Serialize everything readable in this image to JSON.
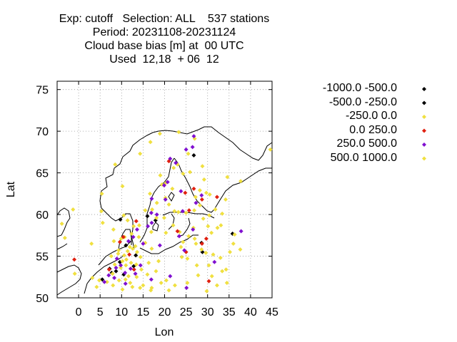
{
  "title_lines": [
    "Exp: cutoff   Selection: ALL    537 stations",
    "Period: 20231108-20231124",
    "Cloud base bias [m] at  00 UTC",
    "Used  12,18  + 06  12"
  ],
  "chart_data": {
    "type": "scatter",
    "xlabel": "Lon",
    "ylabel": "Lat",
    "xlim": [
      -5,
      45
    ],
    "ylim": [
      50,
      76
    ],
    "xticks": [
      0,
      5,
      10,
      15,
      20,
      25,
      30,
      35,
      40,
      45
    ],
    "yticks": [
      50,
      55,
      60,
      65,
      70,
      75
    ],
    "grid": true,
    "legend_placement": "right",
    "series": [
      {
        "name": "-1000.0 -500.0",
        "color": "#000000",
        "points": []
      },
      {
        "name": "-500.0 -250.0",
        "color": "#000000",
        "points": [
          [
            8.7,
            53.2
          ],
          [
            7.2,
            53.5
          ],
          [
            9.6,
            54.3
          ],
          [
            11.0,
            56.3
          ],
          [
            9.7,
            59.4
          ],
          [
            26.8,
            67.1
          ],
          [
            28.8,
            55.5
          ],
          [
            28.6,
            56.6
          ],
          [
            35.8,
            57.7
          ],
          [
            5.5,
            52.2
          ],
          [
            10.5,
            52.8
          ],
          [
            12.8,
            53.8
          ],
          [
            13.3,
            55.1
          ],
          [
            16.0,
            59.8
          ],
          [
            7.7,
            53.0
          ],
          [
            17.9,
            59.3
          ]
        ]
      },
      {
        "name": "-250.0 0.0",
        "color": "#f0e040",
        "points": [
          [
            -3.9,
            58.9
          ],
          [
            -1.3,
            60.6
          ],
          [
            -3.2,
            57.2
          ],
          [
            -0.9,
            52.9
          ],
          [
            4.8,
            52.1
          ],
          [
            4.2,
            51.3
          ],
          [
            3.2,
            52.4
          ],
          [
            3.0,
            56.5
          ],
          [
            7.6,
            55.0
          ],
          [
            8.2,
            56.8
          ],
          [
            9.3,
            55.7
          ],
          [
            9.9,
            57.1
          ],
          [
            10.6,
            55.1
          ],
          [
            11.4,
            55.6
          ],
          [
            12.6,
            55.9
          ],
          [
            10.2,
            54.4
          ],
          [
            11.0,
            53.9
          ],
          [
            12.2,
            54.2
          ],
          [
            13.4,
            54.0
          ],
          [
            14.6,
            53.4
          ],
          [
            8.0,
            51.5
          ],
          [
            9.4,
            52.1
          ],
          [
            10.2,
            51.0
          ],
          [
            11.6,
            52.6
          ],
          [
            12.0,
            51.8
          ],
          [
            13.5,
            52.5
          ],
          [
            15.0,
            51.5
          ],
          [
            16.0,
            52.8
          ],
          [
            17.0,
            51.2
          ],
          [
            18.6,
            54.4
          ],
          [
            19.2,
            51.8
          ],
          [
            20.4,
            52.1
          ],
          [
            21.0,
            50.9
          ],
          [
            22.4,
            51.5
          ],
          [
            24.0,
            54.9
          ],
          [
            24.3,
            56.7
          ],
          [
            25.3,
            54.7
          ],
          [
            25.6,
            57.4
          ],
          [
            26.7,
            58.4
          ],
          [
            27.5,
            53.9
          ],
          [
            30.3,
            53.9
          ],
          [
            31.0,
            52.6
          ],
          [
            32.2,
            51.5
          ],
          [
            33.4,
            53.2
          ],
          [
            34.5,
            51.8
          ],
          [
            34.3,
            53.4
          ],
          [
            35.2,
            55.5
          ],
          [
            36.3,
            57.6
          ],
          [
            36.0,
            56.5
          ],
          [
            37.6,
            55.8
          ],
          [
            33.1,
            58.7
          ],
          [
            30.4,
            59.9
          ],
          [
            29.0,
            59.5
          ],
          [
            26.9,
            60.5
          ],
          [
            25.0,
            60.2
          ],
          [
            23.2,
            60.3
          ],
          [
            22.3,
            60.4
          ],
          [
            21.0,
            61.2
          ],
          [
            21.8,
            63.1
          ],
          [
            20.2,
            62.0
          ],
          [
            19.9,
            59.6
          ],
          [
            18.1,
            59.6
          ],
          [
            17.1,
            60.6
          ],
          [
            15.5,
            60.5
          ],
          [
            14.1,
            58.7
          ],
          [
            12.3,
            57.7
          ],
          [
            11.9,
            56.1
          ],
          [
            13.2,
            56.2
          ],
          [
            12.8,
            58.6
          ],
          [
            11.4,
            59.3
          ],
          [
            10.5,
            59.9
          ],
          [
            8.1,
            58.2
          ],
          [
            5.6,
            59.0
          ],
          [
            5.3,
            60.4
          ],
          [
            5.4,
            62.5
          ],
          [
            10.2,
            63.4
          ],
          [
            8.5,
            66.0
          ],
          [
            14.3,
            67.3
          ],
          [
            16.7,
            68.7
          ],
          [
            18.9,
            69.7
          ],
          [
            23.3,
            69.9
          ],
          [
            27.0,
            69.1
          ],
          [
            25.5,
            67.3
          ],
          [
            25.9,
            65.1
          ],
          [
            22.1,
            65.6
          ],
          [
            20.3,
            63.8
          ],
          [
            19.0,
            64.7
          ],
          [
            24.3,
            64.9
          ],
          [
            28.8,
            65.8
          ],
          [
            29.2,
            64.2
          ],
          [
            29.7,
            62.6
          ],
          [
            28.2,
            61.1
          ],
          [
            31.8,
            60.6
          ],
          [
            34.2,
            61.8
          ],
          [
            34.6,
            64.5
          ],
          [
            37.7,
            64.0
          ],
          [
            44.6,
            67.8
          ],
          [
            23.0,
            66.0
          ],
          [
            22.0,
            58.7
          ],
          [
            23.5,
            57.9
          ],
          [
            27.0,
            57.1
          ],
          [
            29.6,
            55.4
          ],
          [
            31.3,
            55.2
          ],
          [
            33.0,
            54.8
          ],
          [
            25.3,
            51.8
          ],
          [
            27.8,
            52.7
          ],
          [
            29.8,
            50.8
          ],
          [
            18.0,
            53.2
          ],
          [
            20.3,
            57.8
          ],
          [
            23.8,
            56.1
          ],
          [
            15.5,
            56.6
          ],
          [
            14.0,
            57.3
          ],
          [
            16.9,
            57.9
          ],
          [
            18.2,
            61.4
          ],
          [
            19.4,
            63.6
          ],
          [
            16.6,
            62.5
          ],
          [
            30.5,
            62.4
          ],
          [
            33.4,
            60.1
          ],
          [
            30.1,
            58.6
          ],
          [
            28.6,
            55.8
          ],
          [
            27.3,
            56.5
          ],
          [
            7.9,
            52.9
          ],
          [
            6.6,
            51.9
          ],
          [
            10.9,
            52.2
          ],
          [
            12.5,
            51.3
          ],
          [
            14.3,
            51.2
          ],
          [
            16.3,
            54.2
          ],
          [
            16.8,
            50.9
          ],
          [
            9.8,
            53.6
          ],
          [
            11.1,
            54.6
          ],
          [
            14.4,
            54.9
          ],
          [
            13.6,
            55.5
          ],
          [
            17.0,
            55.9
          ],
          [
            32.3,
            58.4
          ],
          [
            30.9,
            57.8
          ],
          [
            28.2,
            62.9
          ],
          [
            27.2,
            62.1
          ],
          [
            9.2,
            55.3
          ],
          [
            8.4,
            54.0
          ],
          [
            10.7,
            57.3
          ]
        ]
      },
      {
        "name": "0.0 250.0",
        "color": "#e02010",
        "points": [
          [
            -1.0,
            54.6
          ],
          [
            13.4,
            59.2
          ],
          [
            12.9,
            53.4
          ],
          [
            10.4,
            57.3
          ],
          [
            21.0,
            66.4
          ],
          [
            26.8,
            63.1
          ],
          [
            28.7,
            61.8
          ],
          [
            32.2,
            62.1
          ],
          [
            30.3,
            52.0
          ],
          [
            29.7,
            57.1
          ],
          [
            23.0,
            58.0
          ],
          [
            24.8,
            62.6
          ],
          [
            25.0,
            55.5
          ],
          [
            25.7,
            60.5
          ],
          [
            7.1,
            53.4
          ],
          [
            11.8,
            55.2
          ],
          [
            9.6,
            56.7
          ],
          [
            28.7,
            56.5
          ]
        ]
      },
      {
        "name": "250.0 500.0",
        "color": "#8010d0",
        "points": [
          [
            6.0,
            51.9
          ],
          [
            7.0,
            52.7
          ],
          [
            8.9,
            54.7
          ],
          [
            9.8,
            53.9
          ],
          [
            10.8,
            53.0
          ],
          [
            12.1,
            53.5
          ],
          [
            13.2,
            52.9
          ],
          [
            11.6,
            56.8
          ],
          [
            12.7,
            57.3
          ],
          [
            13.6,
            58.2
          ],
          [
            15.0,
            56.5
          ],
          [
            16.1,
            58.6
          ],
          [
            17.0,
            59.0
          ],
          [
            16.9,
            60.2
          ],
          [
            18.2,
            60.0
          ],
          [
            17.0,
            61.9
          ],
          [
            19.9,
            63.5
          ],
          [
            20.7,
            63.9
          ],
          [
            21.3,
            66.7
          ],
          [
            22.6,
            66.2
          ],
          [
            25.0,
            67.8
          ],
          [
            26.5,
            68.1
          ],
          [
            26.8,
            69.4
          ],
          [
            20.2,
            61.8
          ],
          [
            24.2,
            60.4
          ],
          [
            27.3,
            61.4
          ],
          [
            28.6,
            62.3
          ],
          [
            23.4,
            57.4
          ],
          [
            24.6,
            55.7
          ],
          [
            25.1,
            51.2
          ],
          [
            31.6,
            54.3
          ],
          [
            37.8,
            58.0
          ],
          [
            14.4,
            53.9
          ],
          [
            16.9,
            52.2
          ],
          [
            21.3,
            52.6
          ],
          [
            18.9,
            56.3
          ],
          [
            26.6,
            58.2
          ],
          [
            8.7,
            53.6
          ],
          [
            10.9,
            51.7
          ],
          [
            8.3,
            52.4
          ],
          [
            23.8,
            62.8
          ]
        ]
      },
      {
        "name": "500.0 1000.0",
        "color": "#f0e040",
        "points": []
      }
    ]
  }
}
